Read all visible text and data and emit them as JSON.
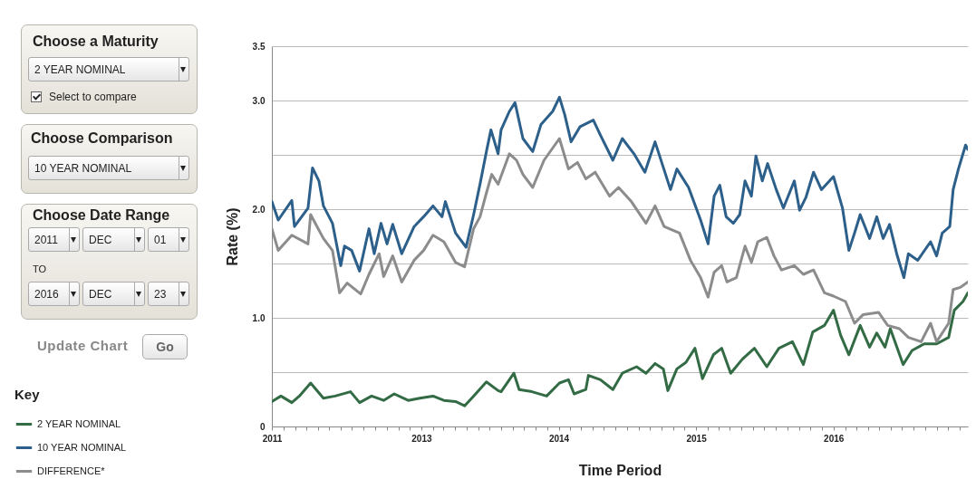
{
  "chart_data": {
    "type": "line",
    "xlabel": "Time Period",
    "ylabel": "Rate (%)",
    "legend_title": "Key",
    "legend": "bottom left",
    "grid": "y",
    "line_style": "solid",
    "marker": "none",
    "annotations": [
      "Choose a Maturity",
      "2 YEAR NOMINAL",
      "Select to compare",
      "Choose Comparison",
      "10 YEAR NOMINAL",
      "Choose Date Range",
      "2011",
      "DEC",
      "01",
      "TO",
      "2016",
      "DEC",
      "23",
      "Update Chart",
      "Go"
    ],
    "xlim": [
      "2011-12-01",
      "2016-12-23"
    ],
    "ylim": [
      0,
      3.5
    ],
    "yticks": [
      0,
      {
        "value": 0.5,
        "label": null
      },
      {
        "value": 1,
        "label": "1.0"
      },
      {
        "value": 1.5,
        "label": null
      },
      {
        "value": 2,
        "label": "2.0"
      },
      {
        "value": 2.5,
        "label": null
      },
      {
        "value": 3,
        "label": "3.0"
      },
      3.5
    ],
    "xticks": [
      {
        "value": "2011-12-01",
        "label": "2011"
      },
      {
        "value": "2012-01-01",
        "label": null
      },
      {
        "value": "2012-02-01",
        "label": null
      },
      {
        "value": "2012-03-01",
        "label": null
      },
      {
        "value": "2012-04-01",
        "label": null
      },
      {
        "value": "2012-05-01",
        "label": null
      },
      {
        "value": "2012-06-01",
        "label": null
      },
      {
        "value": "2012-07-01",
        "label": null
      },
      {
        "value": "2012-08-01",
        "label": null
      },
      {
        "value": "2012-09-01",
        "label": null
      },
      {
        "value": "2012-10-01",
        "label": null
      },
      {
        "value": "2012-11-01",
        "label": null
      },
      {
        "value": "2012-12-01",
        "label": null
      },
      {
        "value": "2013-01-01",
        "label": "2013"
      },
      {
        "value": "2013-02-01",
        "label": null
      },
      {
        "value": "2013-03-01",
        "label": null
      },
      {
        "value": "2013-04-01",
        "label": null
      },
      {
        "value": "2013-05-01",
        "label": null
      },
      {
        "value": "2013-06-01",
        "label": null
      },
      {
        "value": "2013-07-01",
        "label": null
      },
      {
        "value": "2013-08-01",
        "label": null
      },
      {
        "value": "2013-09-01",
        "label": null
      },
      {
        "value": "2013-10-01",
        "label": null
      },
      {
        "value": "2013-11-01",
        "label": null
      },
      {
        "value": "2013-12-01",
        "label": null
      },
      {
        "value": "2014-01-01",
        "label": "2014"
      },
      {
        "value": "2014-02-01",
        "label": null
      },
      {
        "value": "2014-03-01",
        "label": null
      },
      {
        "value": "2014-04-01",
        "label": null
      },
      {
        "value": "2014-05-01",
        "label": null
      },
      {
        "value": "2014-06-01",
        "label": null
      },
      {
        "value": "2014-07-01",
        "label": null
      },
      {
        "value": "2014-08-01",
        "label": null
      },
      {
        "value": "2014-09-01",
        "label": null
      },
      {
        "value": "2014-10-01",
        "label": null
      },
      {
        "value": "2014-11-01",
        "label": null
      },
      {
        "value": "2014-12-01",
        "label": null
      },
      {
        "value": "2015-01-01",
        "label": "2015"
      },
      {
        "value": "2015-02-01",
        "label": null
      },
      {
        "value": "2015-03-01",
        "label": null
      },
      {
        "value": "2015-04-01",
        "label": null
      },
      {
        "value": "2015-05-01",
        "label": null
      },
      {
        "value": "2015-06-01",
        "label": null
      },
      {
        "value": "2015-07-01",
        "label": null
      },
      {
        "value": "2015-08-01",
        "label": null
      },
      {
        "value": "2015-09-01",
        "label": null
      },
      {
        "value": "2015-10-01",
        "label": null
      },
      {
        "value": "2015-11-01",
        "label": null
      },
      {
        "value": "2015-12-01",
        "label": null
      },
      {
        "value": "2016-01-01",
        "label": "2016"
      },
      {
        "value": "2016-02-01",
        "label": null
      },
      {
        "value": "2016-03-01",
        "label": null
      },
      {
        "value": "2016-04-01",
        "label": null
      },
      {
        "value": "2016-05-01",
        "label": null
      },
      {
        "value": "2016-06-01",
        "label": null
      },
      {
        "value": "2016-07-01",
        "label": null
      },
      {
        "value": "2016-08-01",
        "label": null
      },
      {
        "value": "2016-09-01",
        "label": null
      },
      {
        "value": "2016-10-01",
        "label": null
      },
      {
        "value": "2016-11-01",
        "label": null
      },
      {
        "value": "2016-12-01",
        "label": null
      }
    ],
    "series": [
      {
        "name": "2 YEAR NOMINAL",
        "color": "#336b45",
        "x": [
          "2011-12-01",
          "2011-12-25",
          "2012-01-23",
          "2012-02-12",
          "2012-03-13",
          "2012-04-16",
          "2012-05-17",
          "2012-06-27",
          "2012-07-21",
          "2012-08-22",
          "2012-09-23",
          "2012-10-21",
          "2012-11-27",
          "2012-12-28",
          "2013-02-01",
          "2013-03-02",
          "2013-04-02",
          "2013-04-26",
          "2013-05-20",
          "2013-06-23",
          "2013-07-24",
          "2013-08-01",
          "2013-09-04",
          "2013-09-18",
          "2013-10-22",
          "2013-11-30",
          "2014-01-03",
          "2014-01-27",
          "2014-02-11",
          "2014-03-14",
          "2014-03-21",
          "2014-04-22",
          "2014-05-25",
          "2014-06-19",
          "2014-07-27",
          "2014-08-21",
          "2014-09-14",
          "2014-10-06",
          "2014-10-18",
          "2014-11-11",
          "2014-12-05",
          "2014-12-29",
          "2015-01-18",
          "2015-02-16",
          "2015-03-10",
          "2015-04-03",
          "2015-05-04",
          "2015-06-05",
          "2015-07-08",
          "2015-08-09",
          "2015-09-14",
          "2015-10-13",
          "2015-11-07",
          "2015-12-08",
          "2016-01-01",
          "2016-01-20",
          "2016-02-11",
          "2016-03-12",
          "2016-04-06",
          "2016-04-25",
          "2016-05-17",
          "2016-05-31",
          "2016-07-04",
          "2016-07-28",
          "2016-08-29",
          "2016-10-01",
          "2016-11-02",
          "2016-11-17",
          "2016-12-10",
          "2016-12-23"
        ],
        "values": [
          0.23,
          0.28,
          0.22,
          0.28,
          0.4,
          0.26,
          0.28,
          0.32,
          0.22,
          0.28,
          0.24,
          0.3,
          0.24,
          0.26,
          0.28,
          0.24,
          0.23,
          0.19,
          0.28,
          0.41,
          0.33,
          0.32,
          0.49,
          0.34,
          0.32,
          0.28,
          0.4,
          0.43,
          0.3,
          0.34,
          0.47,
          0.43,
          0.34,
          0.49,
          0.55,
          0.49,
          0.58,
          0.53,
          0.33,
          0.53,
          0.59,
          0.72,
          0.44,
          0.66,
          0.72,
          0.49,
          0.62,
          0.72,
          0.55,
          0.72,
          0.78,
          0.57,
          0.87,
          0.93,
          1.07,
          0.84,
          0.66,
          0.93,
          0.73,
          0.86,
          0.73,
          0.9,
          0.57,
          0.7,
          0.76,
          0.76,
          0.82,
          1.07,
          1.15,
          1.23
        ]
      },
      {
        "name": "10 YEAR NOMINAL",
        "color": "#2c5f8a",
        "x": [
          "2011-12-01",
          "2011-12-18",
          "2012-01-23",
          "2012-01-30",
          "2012-03-06",
          "2012-03-18",
          "2012-04-04",
          "2012-04-16",
          "2012-05-10",
          "2012-06-01",
          "2012-06-11",
          "2012-06-30",
          "2012-07-21",
          "2012-08-15",
          "2012-08-29",
          "2012-09-16",
          "2012-10-02",
          "2012-10-17",
          "2012-11-10",
          "2012-12-13",
          "2013-01-07",
          "2013-02-01",
          "2013-02-25",
          "2013-03-06",
          "2013-04-02",
          "2013-04-30",
          "2013-05-20",
          "2013-06-06",
          "2013-06-23",
          "2013-07-05",
          "2013-07-24",
          "2013-08-01",
          "2013-08-23",
          "2013-09-07",
          "2013-09-28",
          "2013-10-24",
          "2013-11-15",
          "2013-12-16",
          "2014-01-03",
          "2014-01-17",
          "2014-02-03",
          "2014-02-27",
          "2014-04-03",
          "2014-04-22",
          "2014-05-25",
          "2014-06-19",
          "2014-07-20",
          "2014-08-18",
          "2014-09-14",
          "2014-10-25",
          "2014-11-11",
          "2014-12-12",
          "2015-01-13",
          "2015-02-02",
          "2015-02-18",
          "2015-03-05",
          "2015-03-22",
          "2015-04-10",
          "2015-04-27",
          "2015-05-11",
          "2015-05-28",
          "2015-06-09",
          "2015-06-26",
          "2015-07-10",
          "2015-08-02",
          "2015-08-21",
          "2015-09-19",
          "2015-10-03",
          "2015-10-20",
          "2015-11-09",
          "2015-11-30",
          "2016-01-01",
          "2016-01-25",
          "2016-02-11",
          "2016-02-26",
          "2016-03-12",
          "2016-04-06",
          "2016-04-25",
          "2016-05-12",
          "2016-05-29",
          "2016-06-17",
          "2016-07-06",
          "2016-07-18",
          "2016-08-12",
          "2016-09-15",
          "2016-10-01",
          "2016-10-16",
          "2016-11-05",
          "2016-11-14",
          "2016-11-28",
          "2016-12-17",
          "2016-12-23"
        ],
        "values": [
          2.07,
          1.9,
          2.08,
          1.84,
          2.01,
          2.38,
          2.26,
          2.03,
          1.87,
          1.48,
          1.66,
          1.62,
          1.43,
          1.82,
          1.59,
          1.87,
          1.68,
          1.86,
          1.59,
          1.84,
          1.93,
          2.03,
          1.93,
          2.07,
          1.78,
          1.65,
          1.95,
          2.23,
          2.53,
          2.73,
          2.51,
          2.73,
          2.9,
          2.98,
          2.65,
          2.53,
          2.78,
          2.9,
          3.03,
          2.87,
          2.62,
          2.76,
          2.82,
          2.68,
          2.45,
          2.65,
          2.51,
          2.34,
          2.62,
          2.18,
          2.37,
          2.2,
          1.9,
          1.68,
          2.12,
          2.22,
          1.93,
          1.87,
          1.95,
          2.26,
          2.12,
          2.49,
          2.26,
          2.42,
          2.18,
          2.01,
          2.26,
          1.99,
          2.11,
          2.34,
          2.18,
          2.3,
          2.01,
          1.62,
          1.78,
          1.95,
          1.73,
          1.93,
          1.73,
          1.86,
          1.59,
          1.37,
          1.59,
          1.53,
          1.7,
          1.57,
          1.78,
          1.84,
          2.18,
          2.37,
          2.59,
          2.55
        ]
      },
      {
        "name": "DIFFERENCE*",
        "color": "#8c8c8c",
        "x": [
          "2011-12-01",
          "2011-12-18",
          "2012-01-23",
          "2012-03-06",
          "2012-03-13",
          "2012-04-16",
          "2012-05-10",
          "2012-05-29",
          "2012-06-18",
          "2012-07-24",
          "2012-08-15",
          "2012-09-11",
          "2012-09-23",
          "2012-10-17",
          "2012-11-10",
          "2012-12-13",
          "2013-01-07",
          "2013-02-01",
          "2013-03-02",
          "2013-04-02",
          "2013-04-26",
          "2013-05-20",
          "2013-06-06",
          "2013-06-23",
          "2013-07-07",
          "2013-07-24",
          "2013-08-23",
          "2013-09-11",
          "2013-09-28",
          "2013-10-24",
          "2013-11-23",
          "2014-01-03",
          "2014-01-27",
          "2014-02-20",
          "2014-03-14",
          "2014-04-08",
          "2014-05-16",
          "2014-06-09",
          "2014-07-13",
          "2014-08-21",
          "2014-09-14",
          "2014-10-08",
          "2014-11-18",
          "2014-12-17",
          "2015-01-13",
          "2015-02-02",
          "2015-02-18",
          "2015-03-10",
          "2015-03-24",
          "2015-04-18",
          "2015-05-11",
          "2015-05-28",
          "2015-06-14",
          "2015-07-08",
          "2015-07-27",
          "2015-08-16",
          "2015-09-19",
          "2015-10-13",
          "2015-11-09",
          "2015-12-08",
          "2016-01-01",
          "2016-02-02",
          "2016-02-26",
          "2016-03-20",
          "2016-04-30",
          "2016-05-24",
          "2016-06-24",
          "2016-07-18",
          "2016-08-21",
          "2016-09-15",
          "2016-10-01",
          "2016-11-02",
          "2016-11-14",
          "2016-12-03",
          "2016-12-23"
        ],
        "values": [
          1.82,
          1.62,
          1.76,
          1.68,
          1.95,
          1.73,
          1.62,
          1.23,
          1.32,
          1.22,
          1.4,
          1.59,
          1.38,
          1.57,
          1.33,
          1.53,
          1.62,
          1.76,
          1.7,
          1.51,
          1.47,
          1.82,
          1.93,
          2.15,
          2.32,
          2.23,
          2.51,
          2.45,
          2.32,
          2.2,
          2.45,
          2.65,
          2.37,
          2.43,
          2.28,
          2.34,
          2.12,
          2.2,
          2.07,
          1.87,
          2.03,
          1.84,
          1.78,
          1.53,
          1.37,
          1.19,
          1.42,
          1.48,
          1.33,
          1.37,
          1.66,
          1.51,
          1.7,
          1.74,
          1.57,
          1.44,
          1.48,
          1.4,
          1.44,
          1.23,
          1.2,
          1.15,
          0.95,
          1.03,
          1.05,
          0.93,
          0.9,
          0.82,
          0.78,
          0.95,
          0.78,
          0.95,
          1.26,
          1.28,
          1.33
        ]
      }
    ]
  }
}
